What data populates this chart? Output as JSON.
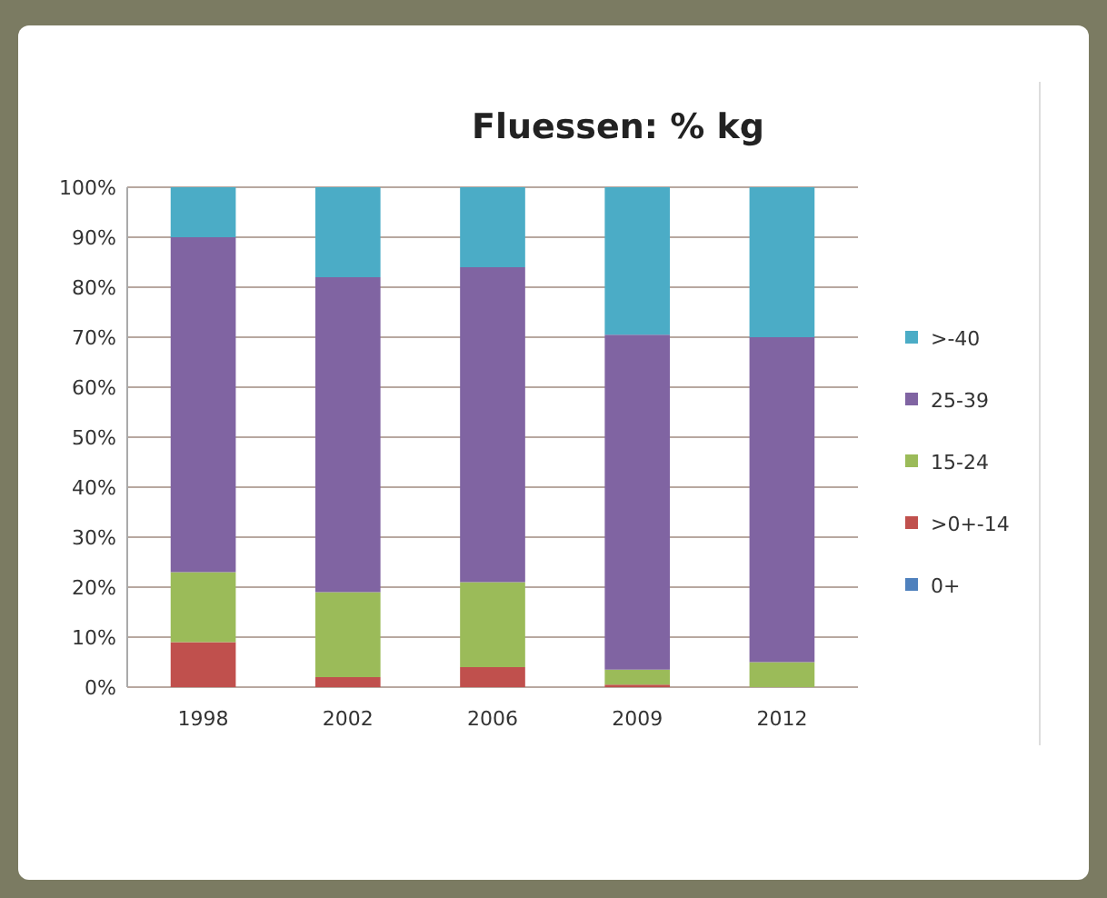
{
  "chart_data": {
    "type": "bar",
    "title": "Fluessen: % kg",
    "categories": [
      "1998",
      "2002",
      "2006",
      "2009",
      "2012"
    ],
    "stacked": true,
    "series": [
      {
        "name": "0+",
        "color": "#4f81bd",
        "values": [
          0,
          0,
          0,
          0,
          0
        ]
      },
      {
        "name": ">0+-14",
        "color": "#c0504d",
        "values": [
          9,
          2,
          4,
          0.5,
          0
        ]
      },
      {
        "name": "15-24",
        "color": "#9bbb59",
        "values": [
          14,
          17,
          17,
          3,
          5
        ]
      },
      {
        "name": "25-39",
        "color": "#8064a2",
        "values": [
          67,
          63,
          63,
          67,
          65
        ]
      },
      {
        "name": ">-40",
        "color": "#4bacc6",
        "values": [
          10,
          18,
          16,
          29.5,
          30
        ]
      }
    ],
    "ylim": [
      0,
      100
    ],
    "yticks": [
      {
        "value": 0,
        "label": "0%"
      },
      {
        "value": 10,
        "label": "10%"
      },
      {
        "value": 20,
        "label": "20%"
      },
      {
        "value": 30,
        "label": "30%"
      },
      {
        "value": 40,
        "label": "40%"
      },
      {
        "value": 50,
        "label": "50%"
      },
      {
        "value": 60,
        "label": "60%"
      },
      {
        "value": 70,
        "label": "70%"
      },
      {
        "value": 80,
        "label": "80%"
      },
      {
        "value": 90,
        "label": "90%"
      },
      {
        "value": 100,
        "label": "100%"
      }
    ],
    "grid": "y",
    "legend": "right"
  }
}
